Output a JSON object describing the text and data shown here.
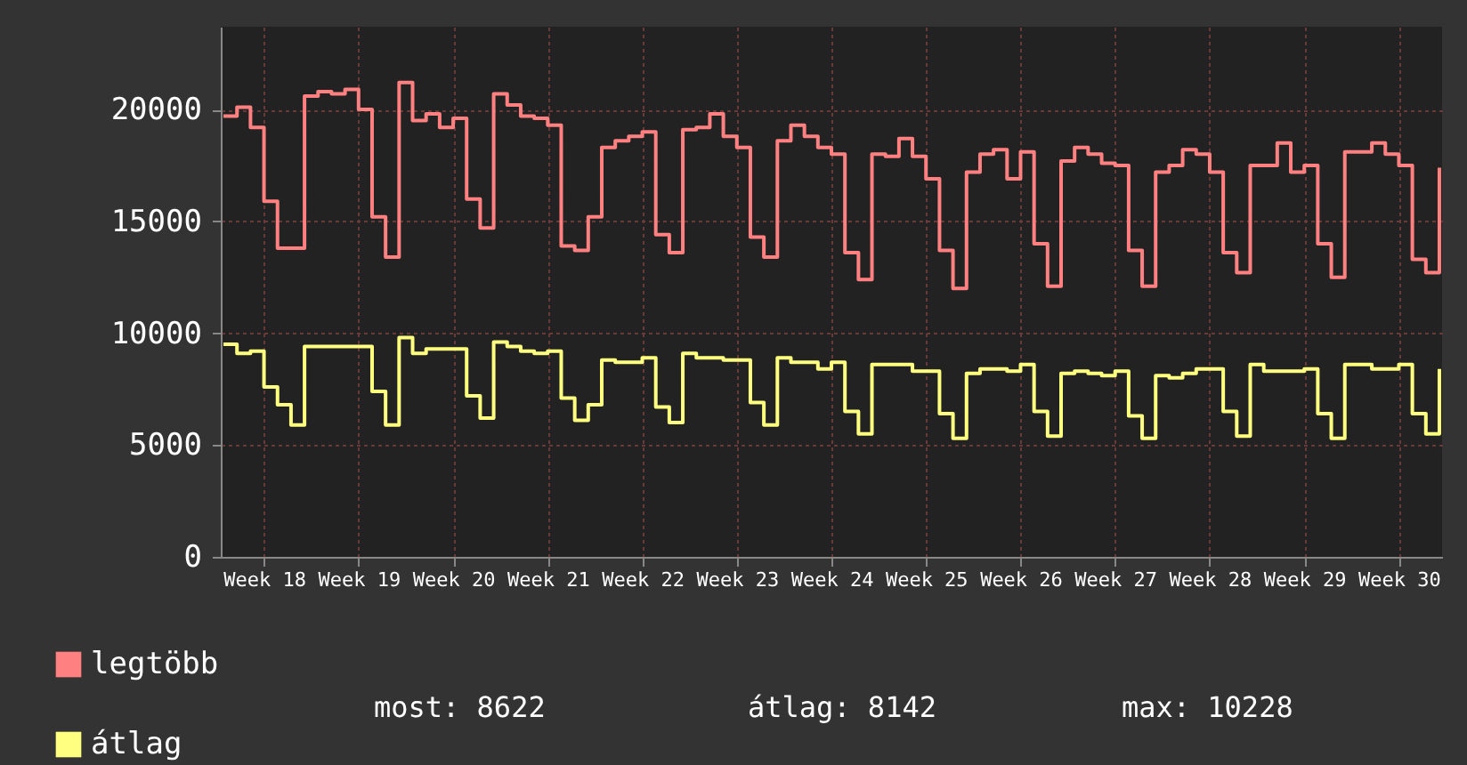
{
  "chart_data": {
    "type": "step",
    "categories": [
      null,
      null,
      null,
      "Week 18",
      null,
      null,
      null,
      null,
      null,
      null,
      "Week 19",
      null,
      null,
      null,
      null,
      null,
      null,
      "Week 20",
      null,
      null,
      null,
      null,
      null,
      null,
      "Week 21",
      null,
      null,
      null,
      null,
      null,
      null,
      "Week 22",
      null,
      null,
      null,
      null,
      null,
      null,
      "Week 23",
      null,
      null,
      null,
      null,
      null,
      null,
      "Week 24",
      null,
      null,
      null,
      null,
      null,
      null,
      "Week 25",
      null,
      null,
      null,
      null,
      null,
      null,
      "Week 26",
      null,
      null,
      null,
      null,
      null,
      null,
      "Week 27",
      null,
      null,
      null,
      null,
      null,
      null,
      "Week 28",
      null,
      null,
      null,
      null,
      null,
      null,
      "Week 29",
      null,
      null,
      null,
      null,
      null,
      null,
      "Week 30",
      null,
      null,
      null
    ],
    "series": [
      {
        "name": "legtöbb",
        "color": "#ff8080",
        "values": [
          19700,
          20100,
          19200,
          15900,
          13800,
          13800,
          20600,
          20800,
          20700,
          20900,
          20000,
          15200,
          13400,
          21200,
          19500,
          19800,
          19200,
          19600,
          16000,
          14700,
          20700,
          20200,
          19700,
          19600,
          19300,
          13900,
          13700,
          15200,
          18300,
          18600,
          18800,
          19000,
          14400,
          13600,
          19100,
          19200,
          19800,
          18800,
          18300,
          14300,
          13400,
          18600,
          19300,
          18800,
          18300,
          18000,
          13600,
          12400,
          18000,
          17900,
          18700,
          17900,
          16900,
          13700,
          12000,
          17200,
          18000,
          18200,
          16900,
          18100,
          14000,
          12100,
          17700,
          18300,
          18000,
          17600,
          17500,
          13700,
          12100,
          17200,
          17500,
          18200,
          18000,
          17200,
          13600,
          12700,
          17500,
          17500,
          18500,
          17200,
          17500,
          14000,
          12500,
          18100,
          18100,
          18500,
          18000,
          17500,
          13300,
          12700,
          17400
        ]
      },
      {
        "name": "átlag",
        "color": "#ffff80",
        "values": [
          9500,
          9100,
          9200,
          7600,
          6800,
          5900,
          9400,
          9400,
          9400,
          9400,
          9400,
          7400,
          5900,
          9800,
          9100,
          9300,
          9300,
          9300,
          7200,
          6200,
          9600,
          9400,
          9200,
          9100,
          9200,
          7100,
          6100,
          6800,
          8800,
          8700,
          8700,
          8900,
          6700,
          6000,
          9100,
          8900,
          8900,
          8800,
          8800,
          6900,
          5900,
          8900,
          8700,
          8700,
          8400,
          8700,
          6500,
          5500,
          8600,
          8600,
          8600,
          8300,
          8300,
          6400,
          5300,
          8200,
          8400,
          8400,
          8300,
          8600,
          6500,
          5400,
          8200,
          8300,
          8200,
          8100,
          8300,
          6300,
          5300,
          8100,
          8000,
          8200,
          8400,
          8400,
          6500,
          5400,
          8600,
          8300,
          8300,
          8300,
          8400,
          6400,
          5300,
          8600,
          8600,
          8400,
          8400,
          8600,
          6400,
          5500,
          8400
        ]
      }
    ],
    "ylim": [
      0,
      23700
    ],
    "yticks": [
      0,
      5000,
      10000,
      15000,
      20000
    ],
    "grid": true,
    "legend": "bottom left",
    "annotations": [
      "most: 8622",
      "átlag: 8142",
      "max: 10228"
    ]
  }
}
